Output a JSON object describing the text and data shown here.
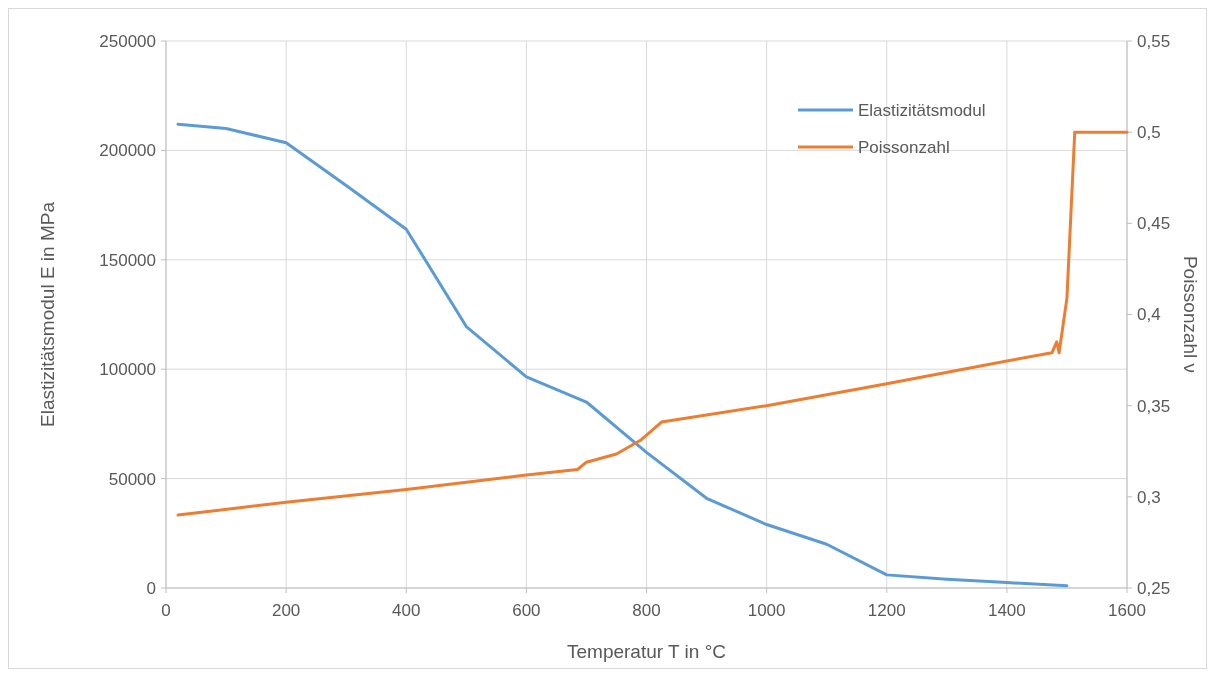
{
  "chart_data": {
    "type": "line",
    "xlabel": "Temperatur T in °C",
    "ylabel": "Elastizitätsmodul E in MPa",
    "y2label": "Poissonzahl ν",
    "xlim": [
      0,
      1600
    ],
    "xticks": [
      0,
      200,
      400,
      600,
      800,
      1000,
      1200,
      1400,
      1600
    ],
    "ylim": [
      0,
      250000
    ],
    "yticks": [
      0,
      50000,
      100000,
      150000,
      200000,
      250000
    ],
    "y2lim": [
      0.25,
      0.55
    ],
    "y2ticks": [
      {
        "value": 0.25,
        "label": "0,25"
      },
      {
        "value": 0.3,
        "label": "0,3"
      },
      {
        "value": 0.35,
        "label": "0,35"
      },
      {
        "value": 0.4,
        "label": "0,4"
      },
      {
        "value": 0.45,
        "label": "0,45"
      },
      {
        "value": 0.5,
        "label": "0,5"
      },
      {
        "value": 0.55,
        "label": "0,55"
      }
    ],
    "grid": true,
    "legend": "top right",
    "line_style": "solid",
    "marker": "none",
    "series": [
      {
        "name": "Elastizitätsmodul",
        "color": "#5b9bd5",
        "x": [
          20,
          100,
          200,
          300,
          400,
          500,
          600,
          700,
          800,
          900,
          1000,
          1100,
          1200,
          1300,
          1400,
          1500
        ],
        "values": [
          212000,
          210000,
          203500,
          184000,
          164000,
          119500,
          96500,
          85000,
          62000,
          41000,
          29000,
          20000,
          6000,
          4000,
          2500,
          1000
        ]
      },
      {
        "name": "Poissonzahl",
        "color": "#ed7d31",
        "axis": "y2",
        "x": [
          20,
          200,
          400,
          600,
          685,
          700,
          750,
          790,
          825,
          1000,
          1200,
          1400,
          1475,
          1483,
          1487,
          1500,
          1513,
          1600
        ],
        "values": [
          0.29,
          0.297,
          0.304,
          0.312,
          0.315,
          0.319,
          0.3235,
          0.331,
          0.341,
          0.35,
          0.362,
          0.3745,
          0.379,
          0.385,
          0.379,
          0.409,
          0.5,
          0.5
        ]
      }
    ]
  }
}
